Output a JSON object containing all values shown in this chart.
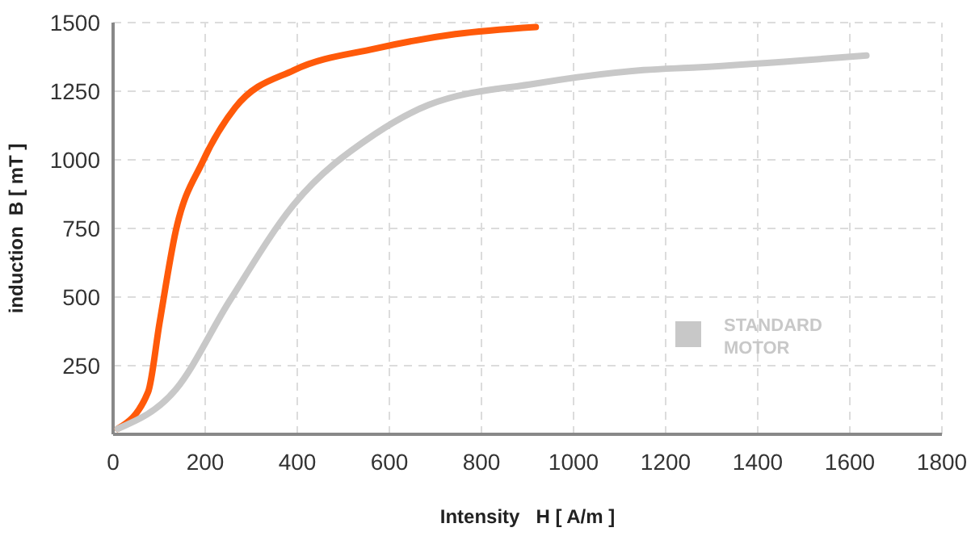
{
  "chart_data": {
    "type": "line",
    "xlabel": "Intensity   H [ A/m ]",
    "ylabel": "induction  B [ mT ]",
    "xlim": [
      0,
      1800
    ],
    "xticks": [
      0,
      200,
      400,
      600,
      800,
      1000,
      1200,
      1400,
      1600,
      1800
    ],
    "ylim": [
      0,
      1500
    ],
    "yticks": [
      250,
      500,
      750,
      1000,
      1250,
      1500
    ],
    "grid": true,
    "legend": "right",
    "marker": "none",
    "line_style": "solid",
    "series": [
      {
        "color": "#ff5a0a",
        "x": [
          10,
          76,
          101,
          136,
          195,
          265,
          393,
          568,
          743,
          918
        ],
        "values": [
          20,
          154,
          407,
          740,
          995,
          1190,
          1327,
          1405,
          1458,
          1484
        ]
      },
      {
        "name": "STANDARD MOTOR",
        "color": "#c8c8c8",
        "x": [
          10,
          136,
          253,
          393,
          568,
          685,
          918,
          1152,
          1268,
          1636
        ],
        "values": [
          20,
          163,
          486,
          838,
          1093,
          1200,
          1278,
          1327,
          1337,
          1380
        ]
      }
    ]
  }
}
